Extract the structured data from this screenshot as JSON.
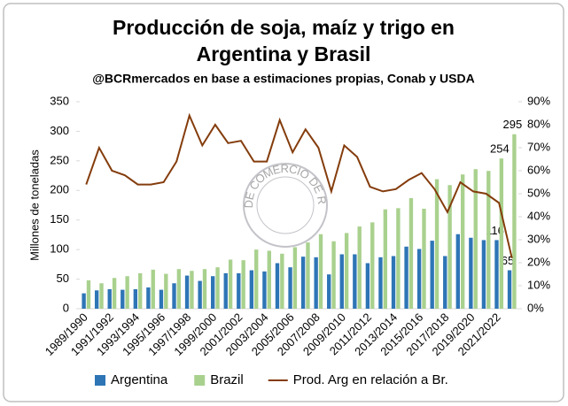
{
  "chart_data": {
    "type": "bar",
    "title": [
      "Producción de soja, maíz y trigo en",
      "Argentina y Brasil"
    ],
    "subtitle": "@BCRmercados en base a estimaciones propias, Conab y USDA",
    "y_label": "Millones de toneladas",
    "watermark": "BOLSA DE COMERCIO DE ROSARIO",
    "categories": [
      "1989/1990",
      null,
      "1991/1992",
      null,
      "1993/1994",
      null,
      "1995/1996",
      null,
      "1997/1998",
      null,
      "1999/2000",
      null,
      "2001/2002",
      null,
      "2003/2004",
      null,
      "2005/2006",
      null,
      "2007/2008",
      null,
      "2009/2010",
      null,
      "2011/2012",
      null,
      "2013/2014",
      null,
      "2015/2016",
      null,
      "2017/2018",
      null,
      "2019/2020",
      null,
      "2021/2022",
      null
    ],
    "series": [
      {
        "name": "Argentina",
        "type": "bar",
        "color": "#2e75b6",
        "labels_from_index": 32,
        "values": [
          26,
          31,
          33,
          32,
          33,
          36,
          32,
          43,
          56,
          47,
          55,
          60,
          60,
          65,
          63,
          77,
          70,
          88,
          87,
          58,
          92,
          92,
          77,
          87,
          89,
          105,
          101,
          115,
          89,
          126,
          120,
          116,
          116,
          65
        ]
      },
      {
        "name": "Brazil",
        "type": "bar",
        "color": "#a9d18e",
        "labels_from_index": 32,
        "values": [
          48,
          43,
          52,
          55,
          60,
          66,
          59,
          67,
          64,
          67,
          70,
          83,
          82,
          100,
          98,
          93,
          104,
          112,
          126,
          114,
          128,
          139,
          146,
          168,
          170,
          187,
          169,
          219,
          209,
          227,
          236,
          233,
          254,
          295
        ]
      },
      {
        "name": "Prod. Arg en relación a Br.",
        "type": "line",
        "axis": "y2",
        "color": "#843c0c",
        "values": [
          54,
          70,
          60,
          58,
          54,
          54,
          55,
          64,
          84,
          71,
          80,
          72,
          73,
          64,
          64,
          82,
          68,
          78,
          70,
          51,
          71,
          66,
          53,
          51,
          52,
          56,
          59,
          52,
          42,
          55,
          51,
          50,
          46,
          22
        ]
      }
    ],
    "ylim": [
      0,
      350
    ],
    "yticks": [
      0,
      50,
      100,
      150,
      200,
      250,
      300,
      350
    ],
    "y2lim": [
      0,
      90
    ],
    "y2ticks": [
      {
        "value": 0,
        "label": "0%"
      },
      {
        "value": 10,
        "label": "10%"
      },
      {
        "value": 20,
        "label": "20%"
      },
      {
        "value": 30,
        "label": "30%"
      },
      {
        "value": 40,
        "label": "40%"
      },
      {
        "value": 50,
        "label": "50%"
      },
      {
        "value": 60,
        "label": "60%"
      },
      {
        "value": 70,
        "label": "70%"
      },
      {
        "value": 80,
        "label": "80%"
      },
      {
        "value": 90,
        "label": "90%"
      }
    ],
    "grid": false,
    "legend": "bottom"
  }
}
